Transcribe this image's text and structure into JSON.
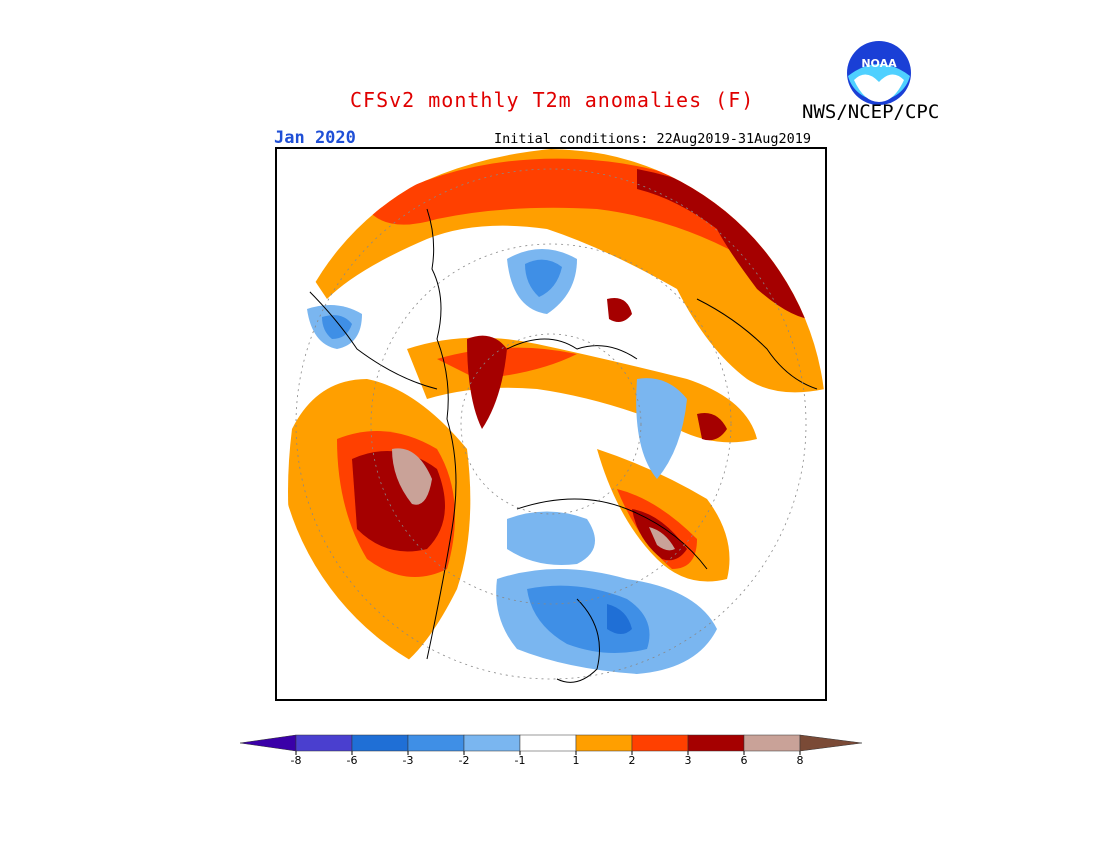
{
  "header": {
    "title": "CFSv2 monthly T2m anomalies (F)",
    "agency": "NWS/NCEP/CPC",
    "month": "Jan 2020",
    "initial_conditions": "Initial conditions: 22Aug2019-31Aug2019"
  },
  "logo": {
    "text": "NOAA",
    "icon": "noaa-logo-icon"
  },
  "legend": {
    "bins": [
      {
        "color": "#3a00a8",
        "range": "< -8"
      },
      {
        "color": "#4a3fcf",
        "range": "-8 to -6"
      },
      {
        "color": "#1f6fd6",
        "range": "-6 to -3"
      },
      {
        "color": "#3f8fe6",
        "range": "-3 to -2"
      },
      {
        "color": "#7ab6f0",
        "range": "-2 to -1"
      },
      {
        "color": "#ffffff",
        "range": "-1 to 1"
      },
      {
        "color": "#ff9f00",
        "range": "1 to 2"
      },
      {
        "color": "#ff4000",
        "range": "2 to 3"
      },
      {
        "color": "#a50000",
        "range": "3 to 6"
      },
      {
        "color": "#c9a298",
        "range": "6 to 8"
      },
      {
        "color": "#7a4a36",
        "range": "> 8"
      }
    ],
    "tick_labels": [
      "-8",
      "-6",
      "-3",
      "-2",
      "-1",
      "1",
      "2",
      "3",
      "6",
      "8"
    ]
  }
}
